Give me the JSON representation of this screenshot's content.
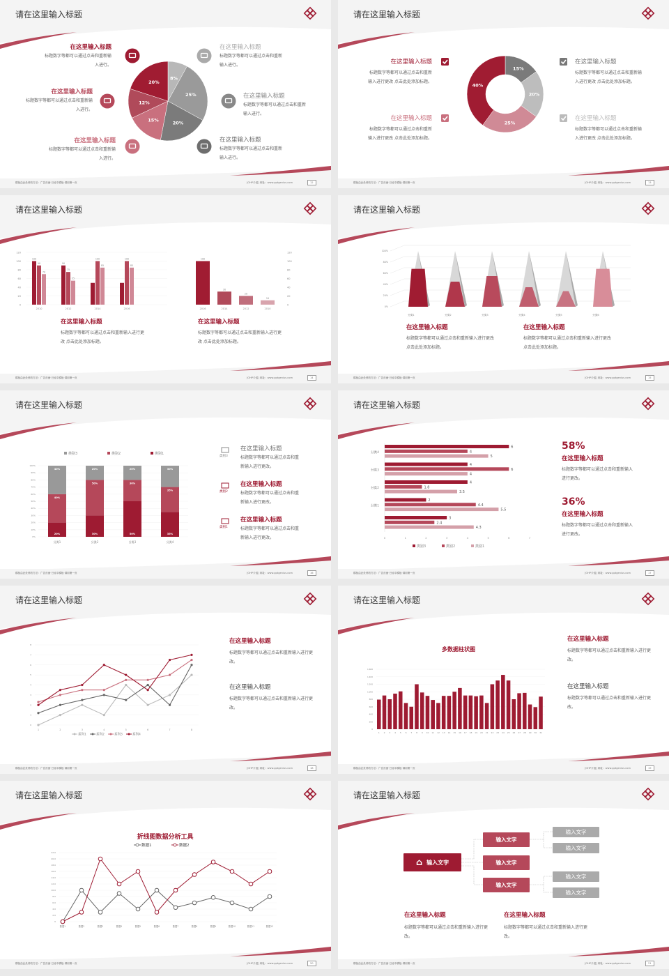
{
  "common": {
    "title": "请在这里输入标题",
    "footer_left": "模板由此处修改方法：广告页面·已经中模板·调用第一页",
    "footer_right": "[OHP介绍]  网址：www.pptgenius.com",
    "colors": {
      "dark_red": "#9e1b32",
      "mid_red": "#b5485a",
      "pink": "#d08896",
      "gray": "#999999",
      "light_gray": "#c4c4c4"
    }
  },
  "slides": [
    {
      "page": "12",
      "items_left": [
        {
          "title": "在这里输入标题",
          "body": "标题数字等都可以通过点击和重新输入进行。",
          "icon": "monitor-icon",
          "color": "#9e1b32"
        },
        {
          "title": "在这里输入标题",
          "body": "标题数字等都可以通过点击和重新输入进行。",
          "icon": "car-icon",
          "color": "#b5485a"
        },
        {
          "title": "在这里输入标题",
          "body": "标题数字等都可以通过点击和重新输入进行。",
          "icon": "book-icon",
          "color": "#c9707e"
        }
      ],
      "items_right": [
        {
          "title": "在这里输入标题",
          "body": "标题数字等都可以通过点击和重新输入进行。",
          "icon": "phone-icon",
          "color": "#aaaaaa"
        },
        {
          "title": "在这里输入标题",
          "body": "标题数字等都可以通过点击和重新输入进行。",
          "icon": "binoculars-icon",
          "color": "#888888"
        },
        {
          "title": "在这里输入标题",
          "body": "标题数字等都可以通过点击和重新输入进行。",
          "icon": "bicycle-icon",
          "color": "#6e6e6e"
        }
      ],
      "chart_data": {
        "type": "pie",
        "values": [
          8,
          25,
          20,
          15,
          12,
          20
        ],
        "labels": [
          "8%",
          "25%",
          "20%",
          "15%",
          "12%",
          "20%"
        ],
        "colors": [
          "#b8b8b8",
          "#9a9a9a",
          "#7b7b7b",
          "#c9707e",
          "#b04a5a",
          "#a01c32"
        ]
      }
    },
    {
      "page": "13",
      "items_left": [
        {
          "title": "在这里输入标题",
          "body": "标题数字等都可以通过点击和重新输入进行更改 点击此处添加标题。",
          "color": "#9e1b32"
        },
        {
          "title": "在这里输入标题",
          "body": "标题数字等都可以通过点击和重新输入进行更改 点击此处添加标题。",
          "color": "#c9707e"
        }
      ],
      "items_right": [
        {
          "title": "在这里输入标题",
          "body": "标题数字等都可以通过点击和重新输入进行更改 点击此处添加标题。",
          "color": "#777777"
        },
        {
          "title": "在这里输入标题",
          "body": "标题数字等都可以通过点击和重新输入进行更改 点击此处添加标题。",
          "color": "#bbbbbb"
        }
      ],
      "chart_data": {
        "type": "pie",
        "donut": true,
        "values": [
          15,
          20,
          25,
          40
        ],
        "labels": [
          "15%",
          "20%",
          "25%",
          "40%"
        ],
        "colors": [
          "#7a7a7a",
          "#bdbdbd",
          "#d08a96",
          "#a01c32"
        ]
      }
    },
    {
      "page": "14",
      "captions": [
        {
          "title": "在这里输入标题",
          "body": "标题数字等都可以通过点击和重新输入进行更改 点击此处添加标题。"
        },
        {
          "title": "在这里输入标题",
          "body": "标题数字等都可以通过点击和重新输入进行更改 点击此处添加标题。"
        }
      ],
      "chart_data": [
        {
          "type": "bar",
          "categories": [
            "2010",
            "2012",
            "2014",
            "2016"
          ],
          "ylim": [
            0,
            120
          ],
          "yticks": [
            "0",
            "20",
            "40",
            "60",
            "80",
            "100",
            "120"
          ],
          "series": [
            {
              "values": [
                100,
                90,
                50,
                50
              ],
              "labels": [
                "100",
                "90",
                "",
                ""
              ]
            },
            {
              "values": [
                90,
                75,
                100,
                100
              ],
              "labels": [
                "90",
                "75",
                "100",
                "100"
              ]
            },
            {
              "values": [
                70,
                55,
                85,
                85
              ],
              "labels": [
                "70",
                "55",
                "85",
                "85"
              ]
            }
          ]
        },
        {
          "type": "bar",
          "categories": [
            "2016",
            "2014",
            "2012",
            "2010"
          ],
          "ylim": [
            0,
            120
          ],
          "yticks": [
            "0",
            "20",
            "40",
            "60",
            "80",
            "100",
            "120"
          ],
          "values": [
            100,
            30,
            20,
            10
          ],
          "labels": [
            "100",
            "30",
            "20",
            "10"
          ]
        }
      ]
    },
    {
      "page": "15",
      "captions": [
        {
          "title": "在这里输入标题",
          "body": "标题数字等都可以通过点击和重新输入进行更改 点击此处添加标题。"
        },
        {
          "title": "在这里输入标题",
          "body": "标题数字等都可以通过点击和重新输入进行更改 点击此处添加标题。"
        }
      ],
      "chart_data": {
        "type": "bar",
        "style": "3d-pyramid",
        "categories": [
          "分类1",
          "分类2",
          "分类3",
          "分类4",
          "分类5",
          "分类6"
        ],
        "values": [
          68,
          45,
          55,
          35,
          28,
          68
        ],
        "ylim": [
          0,
          100
        ],
        "yticks": [
          "0%",
          "20%",
          "40%",
          "60%",
          "80%",
          "100%"
        ]
      }
    },
    {
      "page": "16",
      "side_items": [
        {
          "label": "类别3",
          "title": "在这里输入标题",
          "body": "标题数字等都可以通过点击和重新输入进行更改。",
          "icon": "bar-chart-icon",
          "color": "#888888"
        },
        {
          "label": "类别2",
          "title": "在这里输入标题",
          "body": "标题数字等都可以通过点击和重新输入进行更改。",
          "icon": "upload-icon",
          "color": "#9e1b32"
        },
        {
          "label": "类别1",
          "title": "在这里输入标题",
          "body": "标题数字等都可以通过点击和重新输入进行更改。",
          "icon": "download-icon",
          "color": "#9e1b32"
        }
      ],
      "chart_data": {
        "type": "bar",
        "stacked": "percent",
        "categories": [
          "分类1",
          "分类2",
          "分类3",
          "分类4"
        ],
        "legend": "top",
        "yticks": [
          "0%",
          "10%",
          "20%",
          "30%",
          "40%",
          "50%",
          "60%",
          "70%",
          "80%",
          "90%",
          "100%"
        ],
        "series": [
          {
            "name": "类别1",
            "values": [
              20,
              30,
              50,
              35
            ],
            "labels": [
              "20%",
              "30%",
              "50%",
              "35%"
            ],
            "color": "#9e1b32"
          },
          {
            "name": "类别2",
            "values": [
              40,
              50,
              30,
              35
            ],
            "labels": [
              "40%",
              "50%",
              "30%",
              "35%"
            ],
            "color": "#b5485a"
          },
          {
            "name": "类别3",
            "values": [
              40,
              20,
              20,
              30
            ],
            "labels": [
              "40%",
              "20%",
              "20%",
              "30%"
            ],
            "color": "#999999"
          }
        ]
      }
    },
    {
      "page": "17",
      "stats": [
        {
          "value": "58%",
          "title": "在这里输入标题",
          "body": "标题数字等都可以通过点击和重新输入进行更改。"
        },
        {
          "value": "36%",
          "title": "在这里输入标题",
          "body": "标题数字等都可以通过点击和重新输入进行更改。"
        }
      ],
      "chart_data": {
        "type": "bar",
        "orientation": "horizontal",
        "categories": [
          "分类4",
          "分类3",
          "分类2",
          "分类1",
          ""
        ],
        "xlim": [
          0,
          7
        ],
        "xticks": [
          "0",
          "1",
          "2",
          "3",
          "4",
          "5",
          "6",
          "7"
        ],
        "legend": "bottom",
        "series": [
          {
            "name": "类别3",
            "values": [
              6,
              4,
              4,
              2,
              3
            ],
            "labels": [
              "6",
              "4",
              "4",
              "2",
              "3"
            ],
            "color": "#9e1b32"
          },
          {
            "name": "类别2",
            "values": [
              4,
              6,
              1.8,
              4.4,
              2.4
            ],
            "labels": [
              "4",
              "6",
              "1.8",
              "4.4",
              "2.4"
            ],
            "color": "#b5485a"
          },
          {
            "name": "类别1",
            "values": [
              5,
              4,
              3.5,
              5.5,
              4.3
            ],
            "labels": [
              "5",
              "4",
              "3.5",
              "5.5",
              "4.3"
            ],
            "color": "#d4a0a9"
          }
        ]
      }
    },
    {
      "page": "18",
      "captions": [
        {
          "title": "在这里输入标题",
          "body": "标题数字等都可以通过点击和重新输入进行更改。",
          "color": "#9e1b32"
        },
        {
          "title": "在这里输入标题",
          "body": "标题数字等都可以通过点击和重新输入进行更改。",
          "color": "#444444"
        }
      ],
      "chart_data": {
        "type": "line",
        "x": [
          "1",
          "2",
          "3",
          "4",
          "5",
          "6",
          "7",
          "8"
        ],
        "ylim": [
          0,
          8
        ],
        "yticks": [
          "0",
          "1",
          "2",
          "3",
          "4",
          "5",
          "6",
          "7",
          "8"
        ],
        "legend": "bottom",
        "series": [
          {
            "name": "系列1",
            "values": [
              0,
              1,
              2,
              1,
              4,
              2,
              3,
              5
            ],
            "color": "#bbbbbb"
          },
          {
            "name": "系列2",
            "values": [
              1.2,
              2,
              2.5,
              3,
              2.5,
              4,
              2,
              6
            ],
            "color": "#666666"
          },
          {
            "name": "系列3",
            "values": [
              2.3,
              3,
              3.5,
              3.5,
              4.5,
              4.5,
              5,
              6.5
            ],
            "color": "#c9707e"
          },
          {
            "name": "系列4",
            "values": [
              2,
              3.5,
              4,
              6,
              5,
              3.5,
              6.5,
              7
            ],
            "color": "#9e1b32"
          }
        ]
      }
    },
    {
      "page": "19",
      "captions": [
        {
          "title": "在这里输入标题",
          "body": "标题数字等都可以通过点击和重新输入进行更改。",
          "color": "#9e1b32"
        },
        {
          "title": "在这里输入标题",
          "body": "标题数字等都可以通过点击和重新输入进行更改。",
          "color": "#444444"
        }
      ],
      "chart_data": {
        "type": "bar",
        "title": "多数据柱状图",
        "categories": [
          "1",
          "2",
          "3",
          "4",
          "5",
          "6",
          "7",
          "8",
          "9",
          "10",
          "11",
          "12",
          "13",
          "14",
          "15",
          "16",
          "17",
          "18",
          "19",
          "20",
          "21",
          "22",
          "23",
          "24",
          "25",
          "26",
          "27",
          "28",
          "29",
          "30",
          "31"
        ],
        "values": [
          790,
          900,
          800,
          950,
          1010,
          700,
          600,
          1200,
          980,
          890,
          780,
          700,
          890,
          890,
          1000,
          1100,
          900,
          900,
          880,
          900,
          700,
          1200,
          1300,
          1450,
          1300,
          800,
          960,
          970,
          660,
          590,
          870
        ],
        "ylim": [
          0,
          1600
        ],
        "yticks": [
          "0",
          "200",
          "400",
          "600",
          "800",
          "1,000",
          "1,200",
          "1,400",
          "1,600"
        ]
      }
    },
    {
      "page": "20",
      "chart_data": {
        "type": "line",
        "title": "折线图数据分析工具",
        "x": [
          "数据1",
          "数据2",
          "数据3",
          "数据4",
          "数据5",
          "数据6",
          "数据7",
          "数据8",
          "数据9",
          "数据10",
          "数据11",
          "数据12"
        ],
        "ylim": [
          0,
          22
        ],
        "yticks": [
          "0",
          "2.0",
          "4.0",
          "6.0",
          "8.0",
          "10.0",
          "12.0",
          "14.0",
          "16.0",
          "18.0",
          "20.0",
          "22.0"
        ],
        "legend": "top",
        "series": [
          {
            "name": "数据1",
            "values": [
              0,
              10,
              3,
              9,
              4,
              10,
              4.5,
              6,
              7.7,
              6,
              4,
              8
            ],
            "color": "#666666"
          },
          {
            "name": "数据2",
            "values": [
              0,
              3,
              20,
              12,
              16,
              3,
              10,
              15,
              19,
              16,
              12,
              16
            ],
            "color": "#9e1b32"
          }
        ]
      }
    },
    {
      "page": "21",
      "flow": {
        "root": "输入文字",
        "mid": [
          "输入文字",
          "输入文字",
          "输入文字"
        ],
        "leaves": [
          "输入文字",
          "输入文字",
          "输入文字",
          "输入文字"
        ]
      },
      "captions": [
        {
          "title": "在这里输入标题",
          "body": "标题数字等都可以通过点击和重新输入进行更改。"
        },
        {
          "title": "在这里输入标题",
          "body": "标题数字等都可以通过点击和重新输入进行更改。"
        }
      ]
    }
  ]
}
